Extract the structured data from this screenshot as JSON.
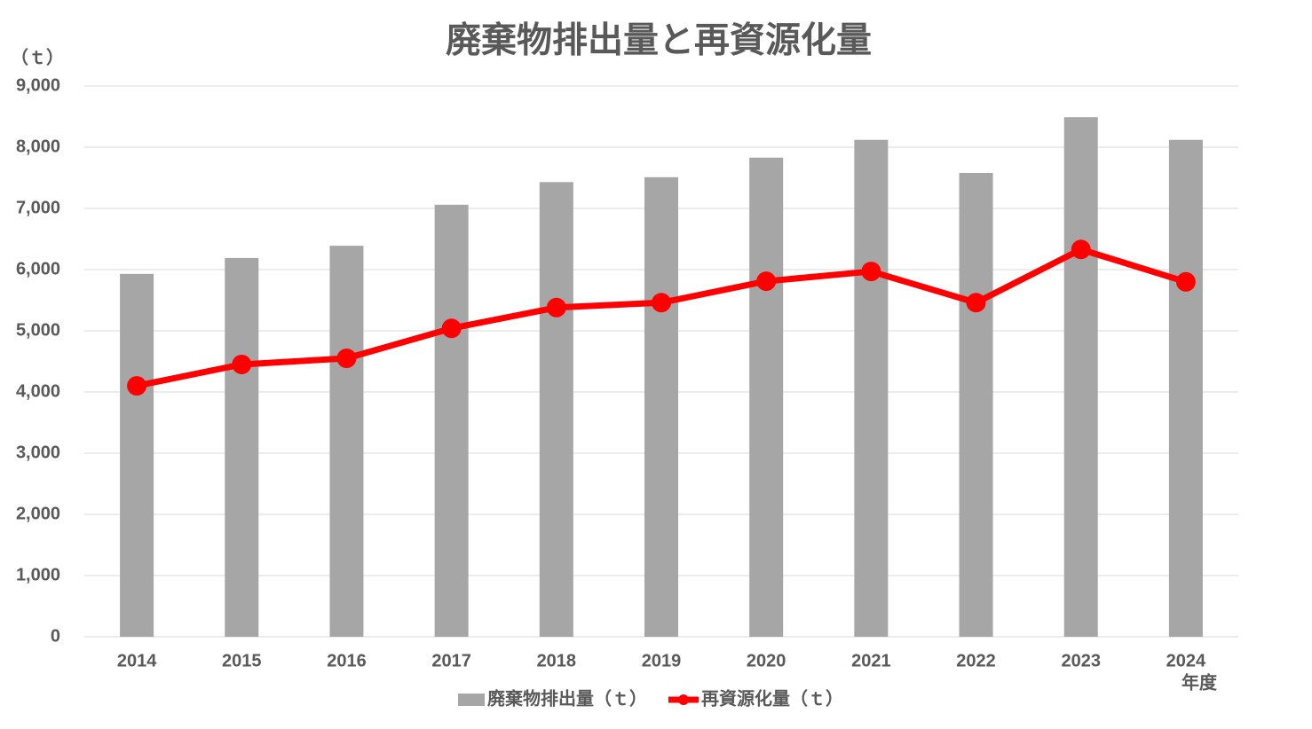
{
  "chart_data": {
    "type": "bar-line",
    "title": "廃棄物排出量と再資源化量",
    "y_label": "（ｔ）",
    "x_label": "年度",
    "categories": [
      "2014",
      "2015",
      "2016",
      "2017",
      "2018",
      "2019",
      "2020",
      "2021",
      "2022",
      "2023",
      "2024"
    ],
    "series": [
      {
        "name": "廃棄物排出量（ｔ）",
        "type": "bar",
        "color": "#a6a6a6",
        "values": [
          5930,
          6190,
          6390,
          7060,
          7430,
          7510,
          7830,
          8120,
          7580,
          8490,
          8120
        ]
      },
      {
        "name": "再資源化量（ｔ）",
        "type": "line",
        "color": "#ff0000",
        "values": [
          4100,
          4450,
          4550,
          5040,
          5380,
          5460,
          5810,
          5970,
          5460,
          6330,
          5800
        ]
      }
    ],
    "ylim": [
      0,
      9000
    ],
    "yticks": [
      0,
      {
        "value": 1000,
        "label": "1,000"
      },
      {
        "value": 2000,
        "label": "2,000"
      },
      {
        "value": 3000,
        "label": "3,000"
      },
      {
        "value": 4000,
        "label": "4,000"
      },
      {
        "value": 5000,
        "label": "5,000"
      },
      {
        "value": 6000,
        "label": "6,000"
      },
      {
        "value": 7000,
        "label": "7,000"
      },
      {
        "value": 8000,
        "label": "8,000"
      },
      {
        "value": 9000,
        "label": "9,000"
      }
    ],
    "grid": true,
    "legend": "bottom"
  }
}
